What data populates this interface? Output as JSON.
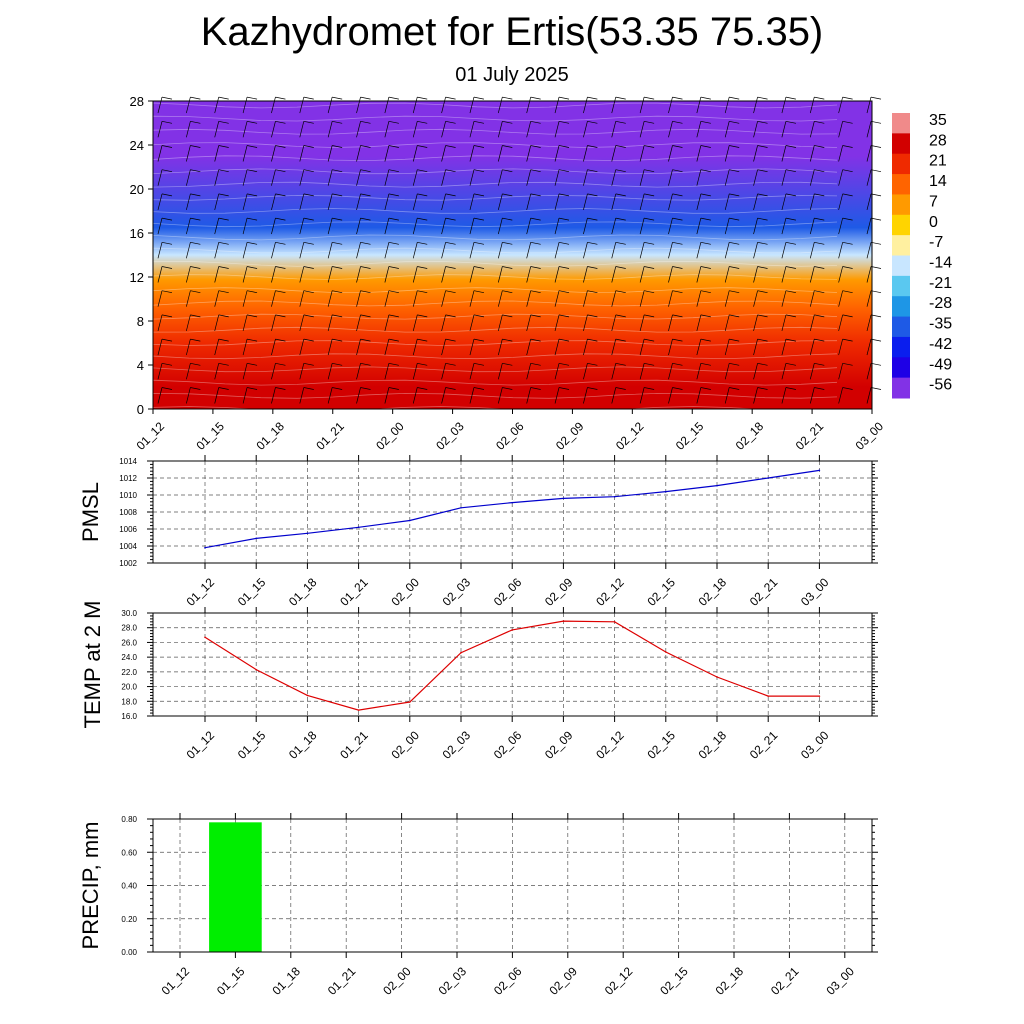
{
  "title": "Kazhydromet for Ertis(53.35 75.35)",
  "subtitle": "01 July 2025",
  "chart_data": [
    {
      "type": "heatmap",
      "title": "",
      "x_ticks": [
        "01_12",
        "01_15",
        "01_18",
        "01_21",
        "02_00",
        "02_03",
        "02_06",
        "02_09",
        "02_12",
        "02_15",
        "02_18",
        "02_21",
        "03_00"
      ],
      "y_ticks": [
        "0",
        "4",
        "8",
        "12",
        "16",
        "20",
        "24",
        "28"
      ],
      "ylim": [
        0,
        28
      ],
      "description_bands": [
        {
          "y_from": 0,
          "y_to": 4,
          "value": 28
        },
        {
          "y_from": 4,
          "y_to": 8,
          "value": 21
        },
        {
          "y_from": 8,
          "y_to": 10.5,
          "value": 14
        },
        {
          "y_from": 10.5,
          "y_to": 13,
          "value": 7
        },
        {
          "y_from": 13,
          "y_to": 15,
          "value": -14
        },
        {
          "y_from": 15,
          "y_to": 18,
          "value": -35
        },
        {
          "y_from": 18,
          "y_to": 28,
          "value": -56
        }
      ],
      "colorbar_labels": [
        "35",
        "28",
        "21",
        "14",
        "7",
        "0",
        "-7",
        "-14",
        "-21",
        "-28",
        "-35",
        "-42",
        "-49",
        "-56"
      ],
      "colorbar_colors": [
        "#f08a8a",
        "#d20000",
        "#ef2a00",
        "#ff6400",
        "#ff9a00",
        "#ffd400",
        "#fff0a0",
        "#c8e6ff",
        "#5ac8f0",
        "#1e96e6",
        "#1e5ae6",
        "#0a1eee",
        "#1e00e6",
        "#8232e6"
      ],
      "grid": false
    },
    {
      "type": "line",
      "ylabel": "PMSL",
      "categories": [
        "01_12",
        "01_15",
        "01_18",
        "01_21",
        "02_00",
        "02_03",
        "02_06",
        "02_09",
        "02_12",
        "02_15",
        "02_18",
        "02_21",
        "03_00"
      ],
      "values": [
        1003.8,
        1004.9,
        1005.5,
        1006.2,
        1007.0,
        1008.5,
        1009.1,
        1009.6,
        1009.8,
        1010.4,
        1011.1,
        1012.0,
        1012.9
      ],
      "ylim": [
        1002,
        1014
      ],
      "y_ticks": [
        "1002",
        "1004",
        "1006",
        "1008",
        "1010",
        "1012",
        "1014"
      ],
      "color": "#0000cc",
      "grid": true
    },
    {
      "type": "line",
      "ylabel": "TEMP at 2 M",
      "categories": [
        "01_12",
        "01_15",
        "01_18",
        "01_21",
        "02_00",
        "02_03",
        "02_06",
        "02_09",
        "02_12",
        "02_15",
        "02_18",
        "02_21",
        "03_00"
      ],
      "values": [
        26.7,
        22.3,
        18.8,
        16.8,
        17.9,
        24.6,
        27.7,
        28.9,
        28.8,
        24.7,
        21.3,
        18.7,
        18.7
      ],
      "ylim": [
        16,
        30
      ],
      "y_ticks": [
        "16.0",
        "18.0",
        "20.0",
        "22.0",
        "24.0",
        "26.0",
        "28.0",
        "30.0"
      ],
      "color": "#dd0000",
      "grid": true
    },
    {
      "type": "bar",
      "ylabel": "PRECIP, mm",
      "categories": [
        "01_12",
        "01_15",
        "01_18",
        "01_21",
        "02_00",
        "02_03",
        "02_06",
        "02_09",
        "02_12",
        "02_15",
        "02_18",
        "02_21",
        "03_00"
      ],
      "values": [
        0,
        0.78,
        0,
        0,
        0,
        0,
        0,
        0,
        0,
        0,
        0,
        0,
        0
      ],
      "ylim": [
        0,
        0.8
      ],
      "y_ticks": [
        "0.00",
        "0.20",
        "0.40",
        "0.60",
        "0.80"
      ],
      "color": "#00ee00",
      "grid": true
    }
  ]
}
